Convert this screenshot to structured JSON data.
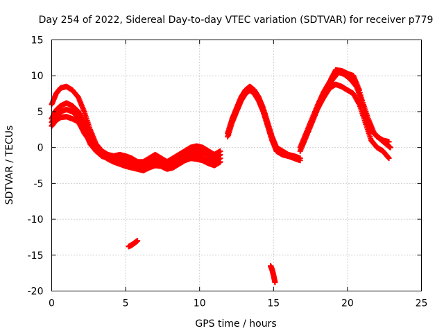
{
  "chart_data": {
    "type": "scatter",
    "title": "Day 254 of 2022, Sidereal Day-to-day VTEC variation (SDTVAR) for receiver p779",
    "xlabel": "GPS time / hours",
    "ylabel": "SDTVAR / TECUs",
    "xlim": [
      0,
      25
    ],
    "ylim": [
      -20,
      15
    ],
    "xticks": [
      0,
      5,
      10,
      15,
      20,
      25
    ],
    "yticks": [
      -20,
      -15,
      -10,
      -5,
      0,
      5,
      10,
      15
    ],
    "grid": true,
    "marker": "+",
    "color": "#ff0000",
    "series": [
      {
        "name": "track-1",
        "x": [
          0.0,
          0.3,
          0.6,
          1.0,
          1.4,
          1.8,
          2.2,
          2.6,
          3.0,
          3.4,
          3.8,
          4.2,
          4.6,
          5.0,
          5.4,
          5.8,
          6.2,
          6.6,
          7.0,
          7.4,
          7.8,
          8.2,
          8.6,
          9.0,
          9.4,
          9.8,
          10.2,
          10.6,
          11.0,
          11.4
        ],
        "y": [
          3.5,
          4.5,
          5.0,
          5.3,
          5.0,
          4.2,
          2.5,
          0.5,
          -0.5,
          -1.2,
          -1.5,
          -1.8,
          -2.0,
          -2.2,
          -2.5,
          -2.8,
          -3.0,
          -2.5,
          -2.2,
          -2.5,
          -2.8,
          -2.5,
          -2.0,
          -1.5,
          -1.0,
          -1.2,
          -1.5,
          -1.8,
          -2.0,
          -1.5
        ]
      },
      {
        "name": "track-2",
        "x": [
          0.0,
          0.3,
          0.6,
          1.0,
          1.4,
          1.8,
          2.2,
          2.6,
          3.0,
          3.4,
          3.8,
          4.2,
          4.6,
          5.0,
          5.4,
          5.8,
          6.2,
          6.6,
          7.0,
          7.4,
          7.8,
          8.2,
          8.6,
          9.0,
          9.4,
          9.8,
          10.2,
          10.6,
          11.0,
          11.4
        ],
        "y": [
          6.0,
          7.5,
          8.3,
          8.5,
          8.0,
          7.0,
          5.0,
          2.5,
          0.5,
          -0.5,
          -1.0,
          -1.2,
          -1.0,
          -1.2,
          -1.5,
          -2.0,
          -2.0,
          -1.5,
          -1.0,
          -1.5,
          -2.0,
          -1.5,
          -1.0,
          -0.5,
          0.0,
          0.2,
          0.0,
          -0.5,
          -1.0,
          -0.5
        ]
      },
      {
        "name": "track-3",
        "x": [
          0.0,
          0.3,
          0.6,
          1.0,
          1.4,
          1.8,
          2.2,
          2.6,
          3.0,
          3.4,
          3.8,
          4.2,
          4.6,
          5.0,
          5.4,
          5.8,
          6.2,
          6.6,
          7.0,
          7.4,
          7.8,
          8.2,
          8.6,
          9.0,
          9.4,
          9.8,
          10.2,
          10.6,
          11.0,
          11.4
        ],
        "y": [
          4.0,
          5.2,
          5.8,
          6.2,
          5.8,
          5.0,
          3.5,
          1.5,
          0.0,
          -0.8,
          -1.3,
          -1.5,
          -1.5,
          -1.8,
          -2.0,
          -2.4,
          -2.5,
          -2.0,
          -1.5,
          -1.8,
          -2.2,
          -2.0,
          -1.5,
          -1.0,
          -0.5,
          -0.5,
          -0.7,
          -1.0,
          -1.5,
          -1.0
        ]
      },
      {
        "name": "track-4",
        "x": [
          0.0,
          0.3,
          0.6,
          1.0,
          1.4,
          1.8,
          2.2,
          2.6,
          3.0,
          3.4,
          3.8,
          4.2,
          4.6,
          5.0,
          5.4,
          5.8,
          6.2,
          6.6,
          7.0,
          7.4,
          7.8,
          8.2,
          8.6,
          9.0,
          9.4,
          9.8,
          10.2,
          10.6,
          11.0,
          11.4
        ],
        "y": [
          3.0,
          3.8,
          4.2,
          4.3,
          4.0,
          3.6,
          2.0,
          0.8,
          -0.2,
          -1.0,
          -1.6,
          -2.0,
          -2.3,
          -2.6,
          -2.8,
          -3.0,
          -3.2,
          -2.8,
          -2.5,
          -2.6,
          -3.0,
          -2.8,
          -2.3,
          -1.8,
          -1.5,
          -1.6,
          -1.8,
          -2.2,
          -2.5,
          -2.0
        ]
      },
      {
        "name": "track-5",
        "x": [
          5.2,
          5.4,
          5.6,
          5.8
        ],
        "y": [
          -13.8,
          -13.6,
          -13.3,
          -13.0
        ]
      },
      {
        "name": "track-6",
        "x": [
          11.9,
          12.2,
          12.5,
          12.8,
          13.1,
          13.4,
          13.7,
          14.0,
          14.3,
          14.6,
          14.9,
          15.2,
          15.6,
          16.0,
          16.4,
          16.8
        ],
        "y": [
          2.0,
          4.0,
          5.5,
          7.0,
          8.0,
          8.5,
          8.0,
          7.0,
          5.5,
          3.5,
          1.5,
          0.0,
          -0.5,
          -1.0,
          -1.2,
          -1.5
        ]
      },
      {
        "name": "track-7",
        "x": [
          11.9,
          12.2,
          12.5,
          12.8,
          13.1,
          13.4,
          13.7,
          14.0,
          14.3,
          14.6,
          14.9,
          15.2,
          15.6,
          16.0,
          16.4,
          16.8
        ],
        "y": [
          1.5,
          3.5,
          5.0,
          6.5,
          7.5,
          8.0,
          7.5,
          6.5,
          5.0,
          3.0,
          1.0,
          -0.5,
          -1.0,
          -1.2,
          -1.5,
          -1.8
        ]
      },
      {
        "name": "track-8",
        "x": [
          14.8,
          14.9,
          15.0,
          15.1
        ],
        "y": [
          -16.5,
          -17.0,
          -17.8,
          -18.8
        ]
      },
      {
        "name": "track-9",
        "x": [
          16.8,
          17.2,
          17.6,
          18.0,
          18.4,
          18.8,
          19.2,
          19.6,
          20.0,
          20.4,
          20.8,
          21.2,
          21.6,
          22.0,
          22.4,
          22.8
        ],
        "y": [
          0.0,
          2.0,
          4.0,
          6.0,
          7.8,
          9.2,
          10.8,
          10.7,
          10.3,
          10.0,
          8.0,
          4.5,
          2.5,
          1.5,
          1.0,
          0.8
        ]
      },
      {
        "name": "track-10",
        "x": [
          16.8,
          17.2,
          17.6,
          18.0,
          18.4,
          18.8,
          19.2,
          19.6,
          20.0,
          20.4,
          20.8,
          21.2,
          21.6,
          22.0,
          22.4,
          22.8
        ],
        "y": [
          -0.5,
          1.5,
          3.5,
          5.5,
          7.0,
          8.3,
          8.8,
          8.5,
          8.0,
          7.5,
          6.0,
          3.5,
          1.0,
          0.0,
          -0.5,
          -1.5
        ]
      },
      {
        "name": "track-11",
        "x": [
          17.0,
          17.4,
          17.8,
          18.2,
          18.6,
          19.0,
          19.4,
          19.8,
          20.2,
          20.6,
          21.0,
          21.4,
          21.8,
          22.2,
          22.6,
          22.9
        ],
        "y": [
          0.5,
          2.5,
          4.5,
          6.5,
          8.0,
          9.5,
          10.5,
          10.2,
          9.5,
          8.5,
          6.5,
          4.0,
          2.0,
          1.2,
          0.5,
          0.0
        ]
      }
    ]
  }
}
